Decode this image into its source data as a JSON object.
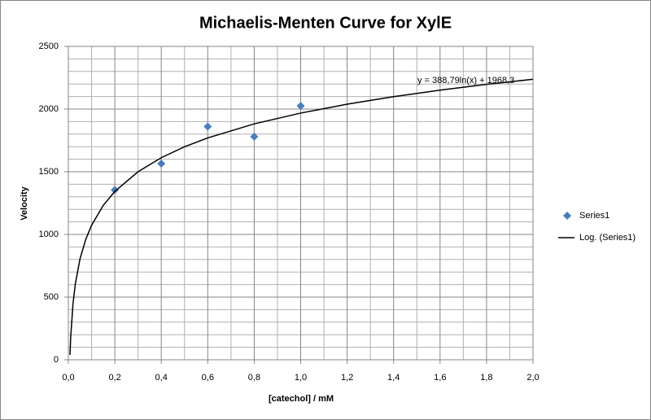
{
  "chart_data": {
    "type": "scatter",
    "title": "Michaelis-Menten Curve for XylE",
    "x_label": "[catechol] / mM",
    "y_label": "Velocity",
    "annotation": "y = 388,79ln(x) + 1968,3",
    "series": [
      {
        "name": "Series1",
        "color": "#4a7ebb",
        "marker": "diamond",
        "x": [
          0.2,
          0.4,
          0.6,
          0.8,
          1.0
        ],
        "y": [
          1355,
          1565,
          1860,
          1780,
          2025
        ]
      },
      {
        "name": "Log. (Series1)",
        "color": "#000000",
        "marker": "line",
        "x": [
          0.007,
          0.01,
          0.02,
          0.03,
          0.05,
          0.075,
          0.1,
          0.15,
          0.2,
          0.3,
          0.4,
          0.5,
          0.6,
          0.8,
          1.0,
          1.2,
          1.4,
          1.6,
          1.8,
          2.0
        ],
        "y": [
          39,
          178,
          447,
          605,
          804,
          961,
          1073,
          1231,
          1343,
          1500,
          1612,
          1699,
          1770,
          1882,
          1968,
          2039,
          2099,
          2151,
          2197,
          2238
        ]
      }
    ],
    "xlim": [
      0,
      2.0
    ],
    "ylim": [
      0,
      2500
    ],
    "xticks": [
      {
        "value": 0,
        "label": "0,0"
      },
      {
        "value": 0.2,
        "label": "0,2"
      },
      {
        "value": 0.4,
        "label": "0,4"
      },
      {
        "value": 0.6,
        "label": "0,6"
      },
      {
        "value": 0.8,
        "label": "0,8"
      },
      {
        "value": 1.0,
        "label": "1,0"
      },
      {
        "value": 1.2,
        "label": "1,2"
      },
      {
        "value": 1.4,
        "label": "1,4"
      },
      {
        "value": 1.6,
        "label": "1,6"
      },
      {
        "value": 1.8,
        "label": "1,8"
      },
      {
        "value": 2.0,
        "label": "2,0"
      }
    ],
    "yticks": [
      0,
      500,
      1000,
      1500,
      2000,
      2500
    ],
    "x_minor_ticks": [
      0.1,
      0.3,
      0.5,
      0.7,
      0.9,
      1.1,
      1.3,
      1.5,
      1.7,
      1.9
    ],
    "y_minor_ticks": [
      100,
      200,
      300,
      400,
      600,
      700,
      800,
      900,
      1100,
      1200,
      1300,
      1400,
      1600,
      1700,
      1800,
      1900,
      2100,
      2200,
      2300,
      2400
    ],
    "grid": true,
    "legend": "right"
  }
}
